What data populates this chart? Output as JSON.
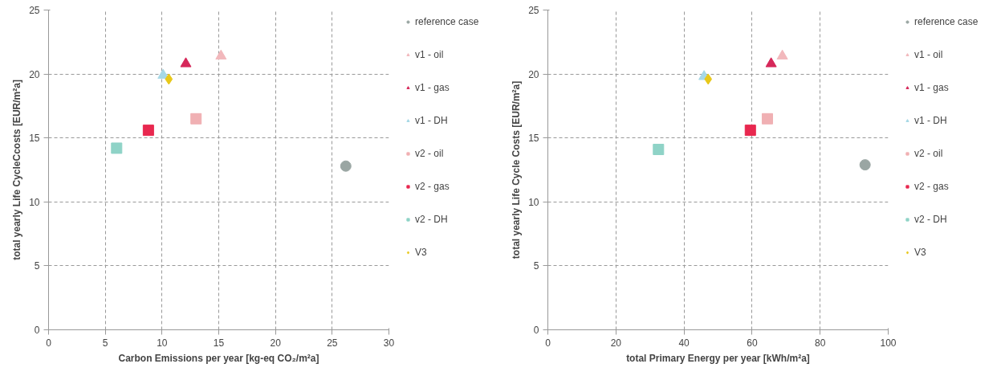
{
  "chart_data": [
    {
      "type": "scatter",
      "xlabel": "Carbon Emissions per year [kg-eq CO₂/m²a]",
      "ylabel": "total yearly Life CycleCcosts [EUR/m²a]",
      "xlim": [
        0,
        30
      ],
      "ylim": [
        0,
        25
      ],
      "xticks": [
        0,
        5,
        10,
        15,
        20,
        25,
        30
      ],
      "yticks": [
        0,
        5,
        10,
        15,
        20,
        25
      ],
      "grid": true,
      "legend": "right",
      "series": [
        {
          "name": "reference case",
          "color": "#9aa6a3",
          "marker": "circle",
          "x": [
            26.2
          ],
          "values": [
            12.8
          ]
        },
        {
          "name": "v1 - oil",
          "color": "#f2b8bc",
          "marker": "triangle",
          "x": [
            15.2
          ],
          "values": [
            21.4
          ]
        },
        {
          "name": "v1 - gas",
          "color": "#d6285a",
          "marker": "triangle",
          "x": [
            12.1
          ],
          "values": [
            20.8
          ]
        },
        {
          "name": "v1 - DH",
          "color": "#a6d8e6",
          "marker": "triangle",
          "x": [
            10.1
          ],
          "values": [
            19.9
          ]
        },
        {
          "name": "v2 - oil",
          "color": "#f0b0b3",
          "marker": "square",
          "x": [
            13.0
          ],
          "values": [
            16.5
          ]
        },
        {
          "name": "v2 - gas",
          "color": "#e8284f",
          "marker": "square",
          "x": [
            8.8
          ],
          "values": [
            15.6
          ]
        },
        {
          "name": "v2 - DH",
          "color": "#8fd3c7",
          "marker": "square",
          "x": [
            6.0
          ],
          "values": [
            14.2
          ]
        },
        {
          "name": "V3",
          "color": "#e8c81a",
          "marker": "diamond",
          "x": [
            10.6
          ],
          "values": [
            19.6
          ]
        }
      ]
    },
    {
      "type": "scatter",
      "xlabel": "total Primary Energy per year [kWh/m²a]",
      "ylabel": "total yearly Life Cycle Costs [EUR/m²a]",
      "xlim": [
        0,
        100
      ],
      "ylim": [
        0,
        25
      ],
      "xticks": [
        0,
        20,
        40,
        60,
        80,
        100
      ],
      "yticks": [
        0,
        5,
        10,
        15,
        20,
        25
      ],
      "grid": true,
      "legend": "right",
      "series": [
        {
          "name": "reference case",
          "color": "#9aa6a3",
          "marker": "circle",
          "x": [
            93.2
          ],
          "values": [
            12.9
          ]
        },
        {
          "name": "v1 - oil",
          "color": "#f2b8bc",
          "marker": "triangle",
          "x": [
            68.9
          ],
          "values": [
            21.4
          ]
        },
        {
          "name": "v1 - gas",
          "color": "#d6285a",
          "marker": "triangle",
          "x": [
            65.6
          ],
          "values": [
            20.8
          ]
        },
        {
          "name": "v1 - DH",
          "color": "#a6d8e6",
          "marker": "triangle",
          "x": [
            45.9
          ],
          "values": [
            19.8
          ]
        },
        {
          "name": "v2 - oil",
          "color": "#f0b0b3",
          "marker": "square",
          "x": [
            64.5
          ],
          "values": [
            16.5
          ]
        },
        {
          "name": "v2 - gas",
          "color": "#e8284f",
          "marker": "square",
          "x": [
            59.5
          ],
          "values": [
            15.6
          ]
        },
        {
          "name": "v2 - DH",
          "color": "#8fd3c7",
          "marker": "square",
          "x": [
            32.5
          ],
          "values": [
            14.1
          ]
        },
        {
          "name": "V3",
          "color": "#e8c81a",
          "marker": "diamond",
          "x": [
            47.1
          ],
          "values": [
            19.6
          ]
        }
      ]
    }
  ]
}
